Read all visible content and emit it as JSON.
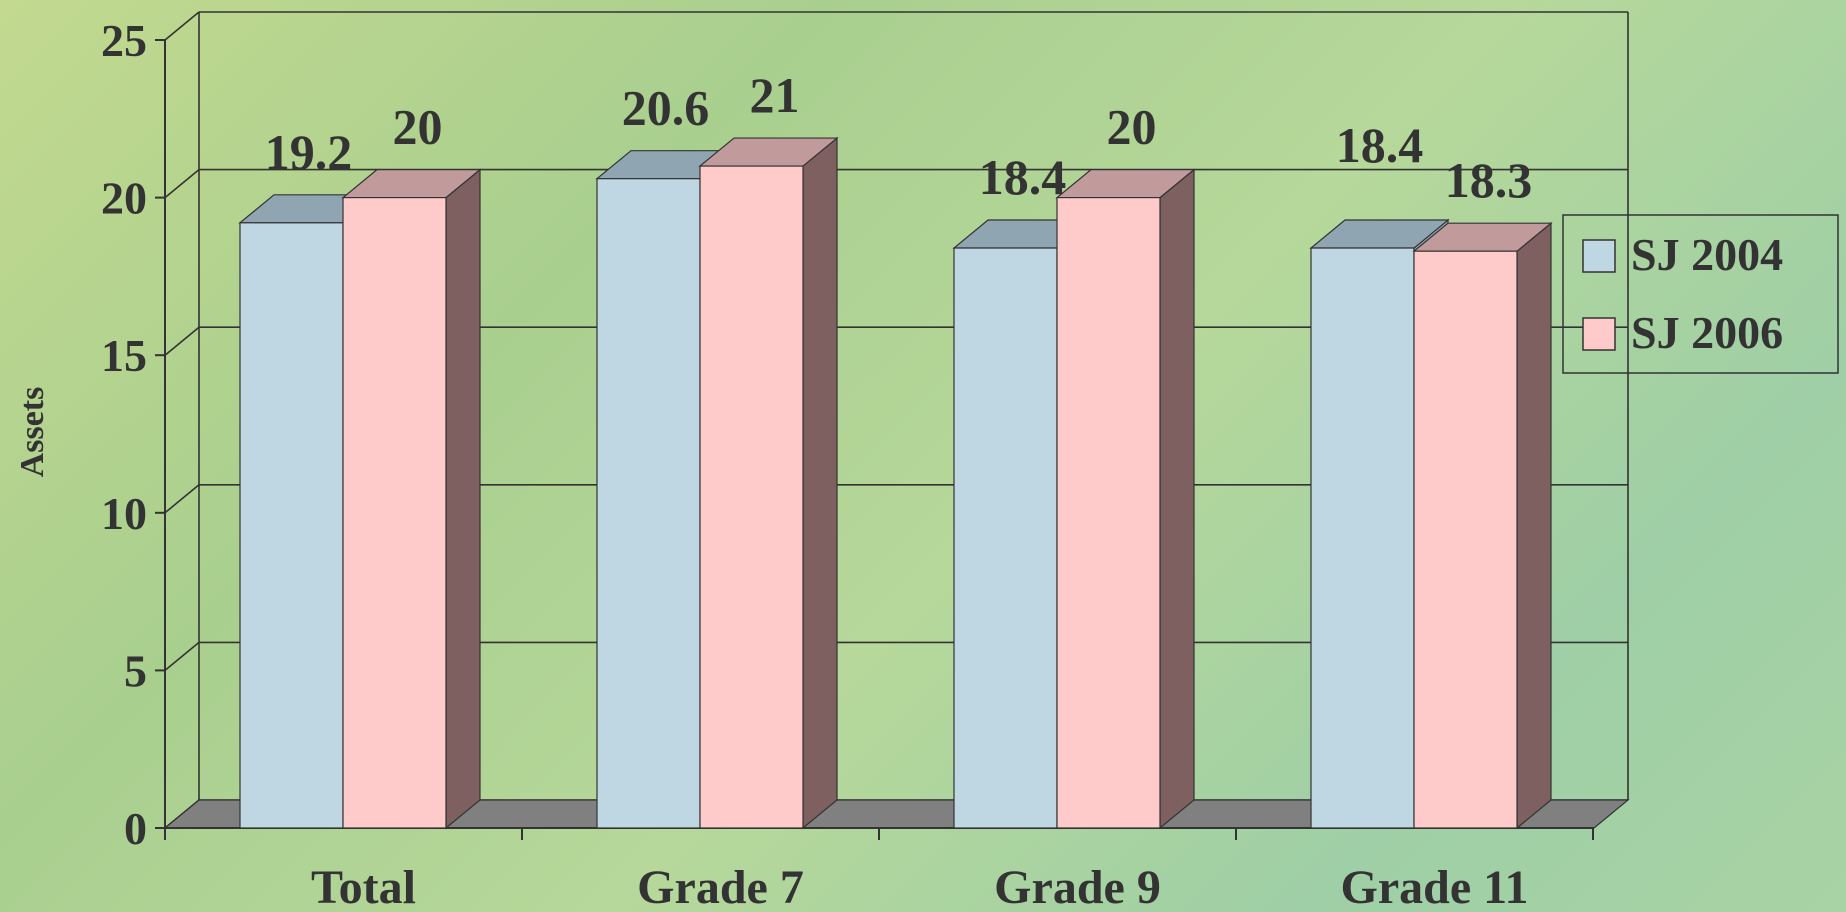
{
  "chart_data": {
    "type": "bar",
    "style": "3d-clustered-column",
    "ylabel": "Assets",
    "ylim": [
      0,
      25
    ],
    "yticks": [
      0,
      5,
      10,
      15,
      20,
      25
    ],
    "grid": true,
    "legend_position": "right",
    "categories": [
      "Total",
      "Grade 7",
      "Grade 9",
      "Grade 11"
    ],
    "series": [
      {
        "name": "SJ 2004",
        "values": [
          19.2,
          20.6,
          18.4,
          18.4
        ],
        "data_labels": [
          "19.2",
          "20.6",
          "18.4",
          "18.4"
        ],
        "color_front": "#bed7e3",
        "color_top": "#8fa5b2"
      },
      {
        "name": "SJ 2006",
        "values": [
          20,
          21,
          20,
          18.3
        ],
        "data_labels": [
          "20",
          "21",
          "20",
          "18.3"
        ],
        "color_front": "#ffcaca",
        "color_top": "#c19a9c",
        "color_side": "#7e6061"
      }
    ],
    "colors": {
      "floor": "#808080",
      "grid": "#333333",
      "text": "#333333"
    }
  }
}
